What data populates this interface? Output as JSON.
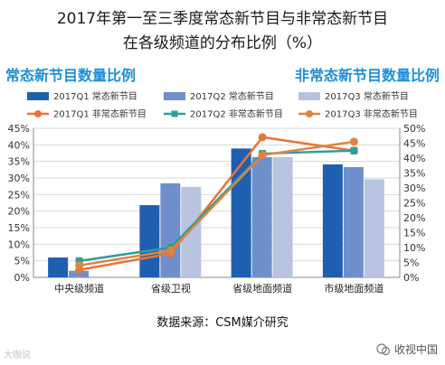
{
  "title_line1": "2017年第一至三季度常态新节目与非常态新节目",
  "title_line2": "在各级频道的分布比例（%）",
  "left_axis_title": "常态新节目数量比例",
  "right_axis_title": "非常态新节目数量比例",
  "source": "数据来源：CSM媒介研究",
  "watermark_left": "大咖说",
  "watermark_right": "收视中国",
  "chart_data": {
    "type": "bar",
    "categories": [
      "中央级频道",
      "省级卫视",
      "省级地面频道",
      "市级地面频道"
    ],
    "bar_series": [
      {
        "name": "2017Q1 常态新节目",
        "color": "#1f5fb0",
        "values": [
          6.0,
          21.8,
          38.9,
          34.1
        ]
      },
      {
        "name": "2017Q2 常态新节目",
        "color": "#6f8fcc",
        "values": [
          2.0,
          28.4,
          36.3,
          33.3
        ]
      },
      {
        "name": "2017Q3 常态新节目",
        "color": "#b8c3df",
        "values": [
          0.0,
          27.3,
          36.3,
          29.6
        ]
      }
    ],
    "line_series": [
      {
        "name": "2017Q1 非常态新节目",
        "color": "#e8743b",
        "marker": "circle",
        "values": [
          2.5,
          8.0,
          47.0,
          42.5
        ]
      },
      {
        "name": "2017Q2 非常态新节目",
        "color": "#2e9e9a",
        "marker": "square",
        "values": [
          5.5,
          10.0,
          41.5,
          42.5
        ]
      },
      {
        "name": "2017Q3 非常态新节目",
        "color": "#e0843e",
        "marker": "circle",
        "values": [
          4.0,
          9.0,
          41.0,
          45.5
        ]
      }
    ],
    "left_axis": {
      "min": 0,
      "max": 45,
      "step": 5,
      "tick_labels": [
        "0%",
        "5%",
        "10%",
        "15%",
        "20%",
        "25%",
        "30%",
        "35%",
        "40%",
        "45%"
      ]
    },
    "right_axis": {
      "min": 0,
      "max": 50,
      "step": 5,
      "tick_labels": [
        "0%",
        "5%",
        "10%",
        "15%",
        "20%",
        "25%",
        "30%",
        "35%",
        "40%",
        "45%",
        "50%"
      ]
    },
    "grid": true,
    "legend_placement": "top"
  }
}
